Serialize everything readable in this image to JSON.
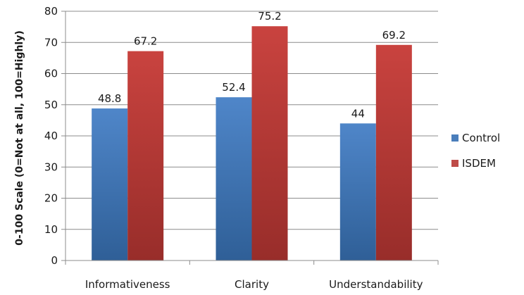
{
  "chart_data": {
    "type": "bar",
    "categories": [
      "Informativeness",
      "Clarity",
      "Understandability"
    ],
    "series": [
      {
        "name": "Control",
        "values": [
          48.8,
          52.4,
          44
        ],
        "labels": [
          "48.8",
          "52.4",
          "44"
        ],
        "color": "#4a7ebb"
      },
      {
        "name": "ISDEM",
        "values": [
          67.2,
          75.2,
          69.2
        ],
        "labels": [
          "67.2",
          "75.2",
          "69.2"
        ],
        "color": "#be4b48"
      }
    ],
    "title": "",
    "xlabel": "",
    "ylabel": "0-100 Scale (0=Not at all, 100=Highly)",
    "ylim": [
      0,
      80
    ],
    "yticks": [
      0,
      10,
      20,
      30,
      40,
      50,
      60,
      70,
      80
    ],
    "grid": true,
    "legend_position": "right"
  }
}
